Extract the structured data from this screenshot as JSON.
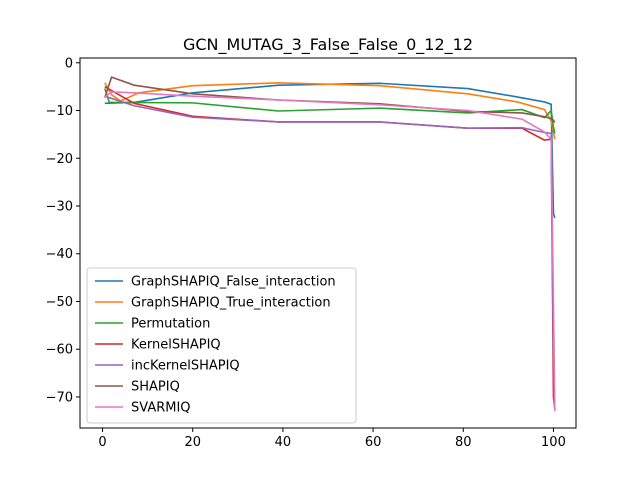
{
  "chart_data": {
    "type": "line",
    "title": "GCN_MUTAG_3_False_False_0_12_12",
    "xlabel": "",
    "ylabel": "",
    "xlim": [
      -5,
      105
    ],
    "ylim": [
      -76.5,
      1
    ],
    "xticks": [
      0,
      20,
      40,
      60,
      80,
      100
    ],
    "yticks": [
      0,
      -10,
      -20,
      -30,
      -40,
      -50,
      -60,
      -70
    ],
    "grid": false,
    "legend_position": "lower-left",
    "series": [
      {
        "name": "GraphSHAPIQ_False_interaction",
        "color": "#1f77b4",
        "x": [
          0.5,
          7,
          20,
          39,
          61.5,
          81,
          91,
          98,
          99.5,
          100,
          100.3
        ],
        "y": [
          -8.5,
          -8.3,
          -6.3,
          -4.7,
          -4.3,
          -5.4,
          -7.0,
          -8.2,
          -8.7,
          -31.5,
          -32.5
        ]
      },
      {
        "name": "GraphSHAPIQ_True_interaction",
        "color": "#ff7f0e",
        "x": [
          0.5,
          2,
          4,
          8,
          20,
          39,
          61.5,
          81,
          92,
          98,
          99.5,
          100,
          100.3
        ],
        "y": [
          -4.2,
          -6.7,
          -8.0,
          -6.3,
          -4.8,
          -4.2,
          -4.8,
          -6.5,
          -8.2,
          -9.8,
          -12.2,
          -14.5,
          -16.0
        ]
      },
      {
        "name": "Permutation",
        "color": "#2ca02c",
        "x": [
          0.5,
          1.5,
          4,
          20,
          39,
          61.5,
          81,
          93,
          98,
          99.5,
          100,
          100.3
        ],
        "y": [
          -5.4,
          -8.3,
          -8.3,
          -8.4,
          -10.1,
          -9.5,
          -10.5,
          -9.8,
          -11.5,
          -10.0,
          -13.5,
          -14.8
        ]
      },
      {
        "name": "KernelSHAPIQ",
        "color": "#d62728",
        "x": [
          0.5,
          7,
          20,
          39,
          61.5,
          81,
          93,
          98,
          99.5,
          100,
          100.3
        ],
        "y": [
          -5.0,
          -8.5,
          -11.2,
          -12.4,
          -12.4,
          -13.7,
          -13.7,
          -16.2,
          -16.0,
          -70.0,
          -72.5
        ]
      },
      {
        "name": "incKernelSHAPIQ",
        "color": "#9467bd",
        "x": [
          0.5,
          7,
          20,
          39,
          61.5,
          81,
          93,
          98,
          99.5,
          100,
          100.3
        ],
        "y": [
          -7.0,
          -9.0,
          -11.4,
          -12.4,
          -12.4,
          -13.7,
          -13.6,
          -14.6,
          -14.8,
          -60.0,
          -72.8
        ]
      },
      {
        "name": "SHAPIQ",
        "color": "#8c564b",
        "x": [
          0.5,
          2,
          7,
          20,
          39,
          61.5,
          81,
          93,
          98,
          99.5,
          100,
          100.3
        ],
        "y": [
          -7.3,
          -3.0,
          -4.7,
          -6.5,
          -7.8,
          -8.6,
          -10.2,
          -10.5,
          -11.3,
          -11.7,
          -12.0,
          -12.5
        ]
      },
      {
        "name": "SVARMIQ",
        "color": "#e377c2",
        "x": [
          0.5,
          2,
          7,
          20,
          39,
          61.5,
          81,
          93,
          98,
          99.5,
          100,
          100.3
        ],
        "y": [
          -7.2,
          -6.1,
          -6.3,
          -7.0,
          -7.8,
          -8.8,
          -10.0,
          -11.8,
          -14.5,
          -16.0,
          -50.0,
          -73.0
        ]
      }
    ]
  }
}
